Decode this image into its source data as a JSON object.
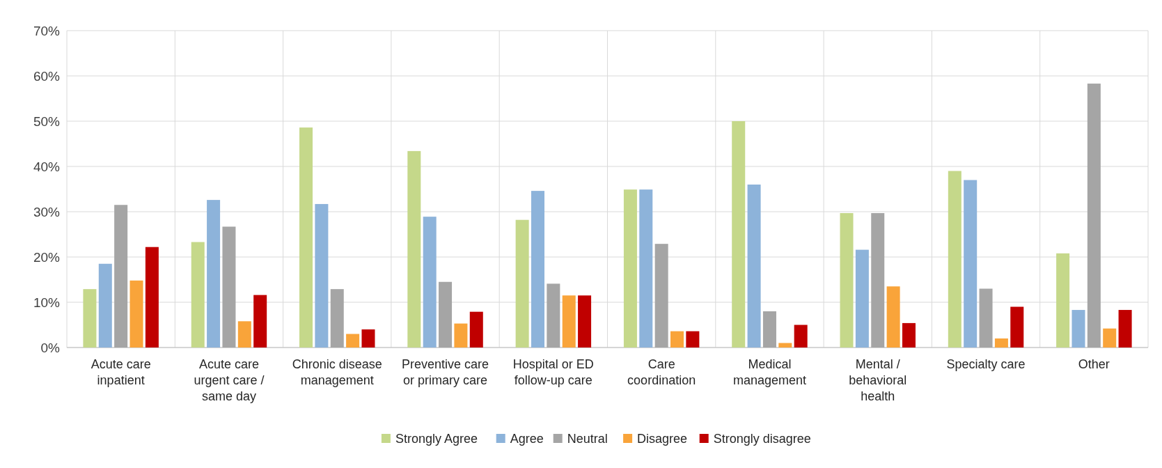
{
  "chart_data": {
    "type": "bar",
    "categories": [
      "Acute care inpatient",
      "Acute care urgent care / same day",
      "Chronic disease management",
      "Preventive care or primary care",
      "Hospital or ED follow-up care",
      "Care coordination",
      "Medical management",
      "Mental / behavioral health",
      "Specialty care",
      "Other"
    ],
    "series": [
      {
        "name": "Strongly Agree",
        "color": "#c5d88a",
        "values": [
          12.9,
          23.3,
          48.6,
          43.4,
          28.2,
          34.9,
          50,
          29.7,
          39,
          20.8
        ]
      },
      {
        "name": "Agree",
        "color": "#8db3da",
        "values": [
          18.5,
          32.6,
          31.7,
          28.9,
          34.6,
          34.9,
          36,
          21.6,
          37,
          8.3
        ]
      },
      {
        "name": "Neutral",
        "color": "#a5a5a5",
        "values": [
          31.5,
          26.7,
          12.9,
          14.5,
          14.1,
          22.9,
          8,
          29.7,
          13,
          58.3
        ]
      },
      {
        "name": "Disagree",
        "color": "#f9a43a",
        "values": [
          14.8,
          5.8,
          3,
          5.3,
          11.5,
          3.6,
          1,
          13.5,
          2,
          4.2
        ]
      },
      {
        "name": "Strongly disagree",
        "color": "#c00000",
        "values": [
          22.2,
          11.6,
          4,
          7.9,
          11.5,
          3.6,
          5,
          5.4,
          9,
          8.3
        ]
      }
    ],
    "ylim": [
      0,
      70
    ],
    "yticks": [
      {
        "value": 0,
        "label": "0%"
      },
      {
        "value": 10,
        "label": "10%"
      },
      {
        "value": 20,
        "label": "20%"
      },
      {
        "value": 30,
        "label": "30%"
      },
      {
        "value": 40,
        "label": "40%"
      },
      {
        "value": 50,
        "label": "50%"
      },
      {
        "value": 60,
        "label": "60%"
      },
      {
        "value": 70,
        "label": "70%"
      }
    ],
    "grid": true,
    "legend": "bottom"
  }
}
